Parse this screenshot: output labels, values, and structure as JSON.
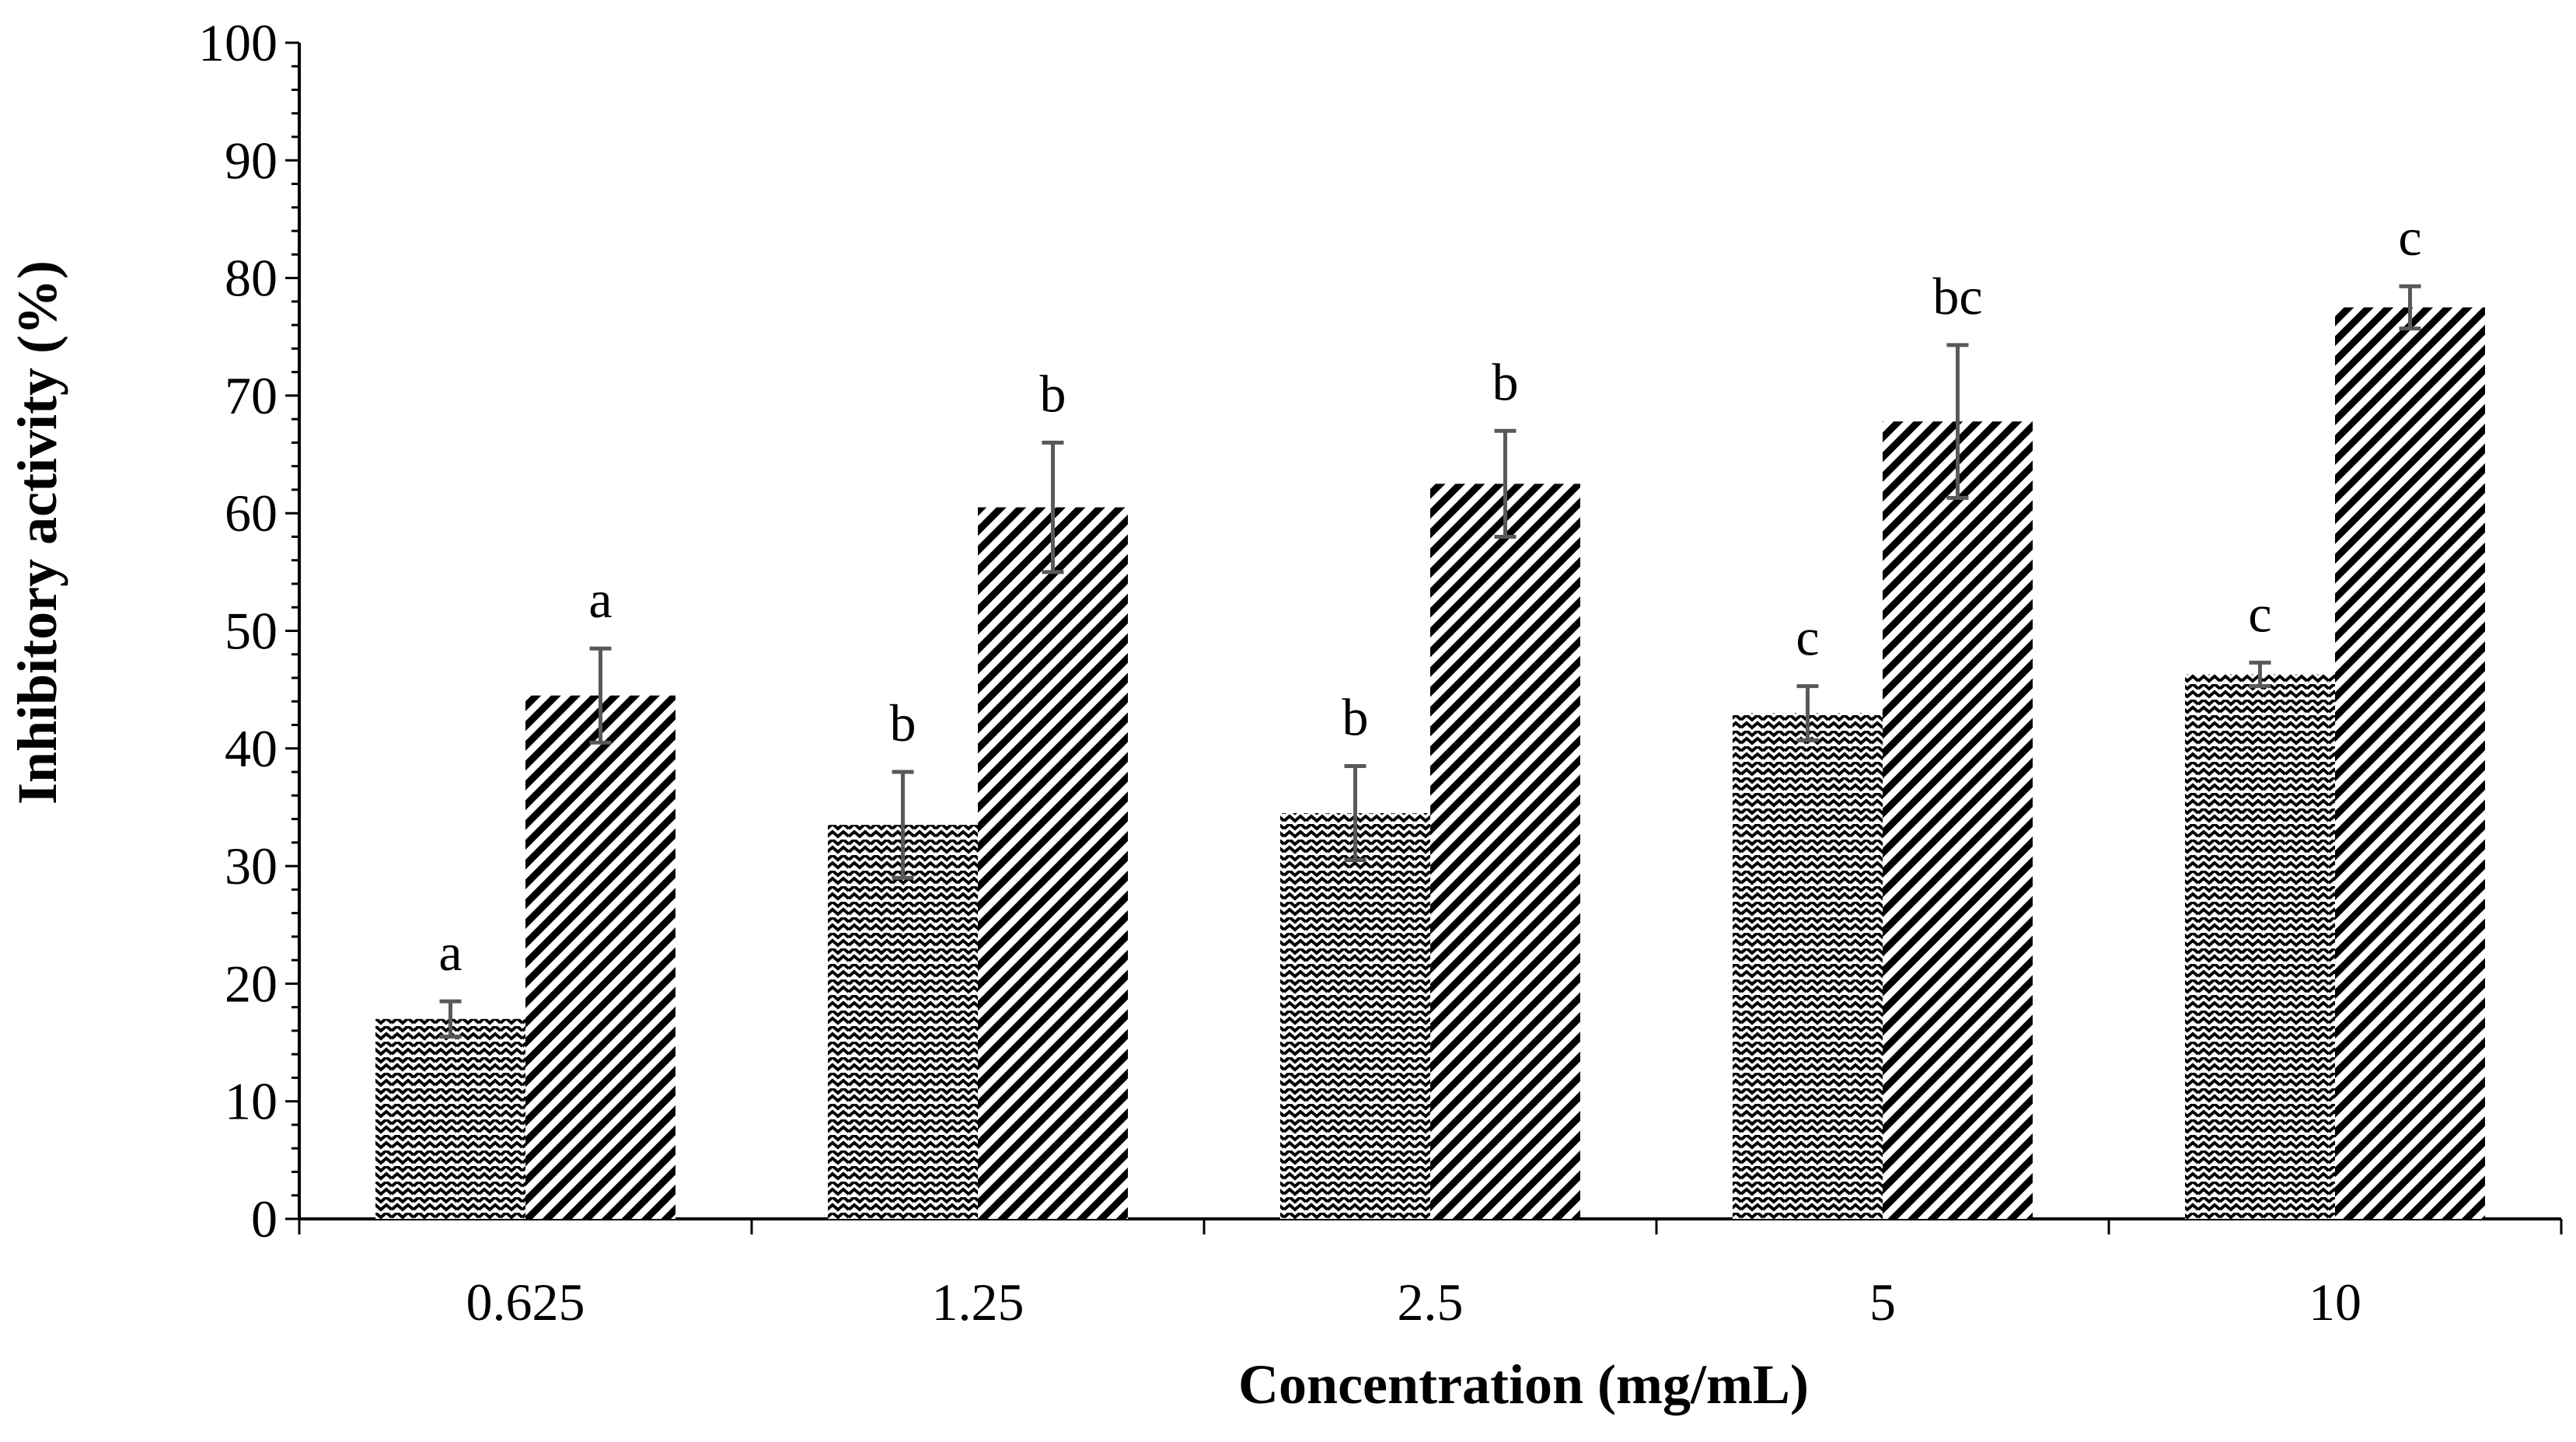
{
  "chart_data": {
    "type": "bar",
    "title": "",
    "xlabel": "Concentration (mg/mL)",
    "ylabel": "Inhibitory  activity (%)",
    "categories": [
      "0.625",
      "1.25",
      "2.5",
      "5",
      "10"
    ],
    "ylim": [
      0,
      100
    ],
    "ytick_step": 10,
    "ytick_labels": [
      "0",
      "10",
      "20",
      "30",
      "40",
      "50",
      "60",
      "70",
      "80",
      "90",
      "100"
    ],
    "grid": false,
    "legend": "none",
    "series": [
      {
        "name": "series-1",
        "pattern": "wave",
        "values": [
          17,
          33.5,
          34.5,
          43,
          46.3
        ],
        "errors": [
          1.5,
          4.5,
          4,
          2.3,
          1
        ],
        "sig_labels": [
          "a",
          "b",
          "b",
          "c",
          "c"
        ]
      },
      {
        "name": "series-2",
        "pattern": "diagonal",
        "values": [
          44.5,
          60.5,
          62.5,
          67.8,
          77.5
        ],
        "errors": [
          4,
          5.5,
          4.5,
          6.5,
          1.8
        ],
        "sig_labels": [
          "a",
          "b",
          "b",
          "bc",
          "c"
        ]
      }
    ],
    "colors": {
      "bar_ink": "#000000",
      "bar_bg": "#ffffff",
      "error_bar": "#595959",
      "axis": "#000000"
    }
  }
}
